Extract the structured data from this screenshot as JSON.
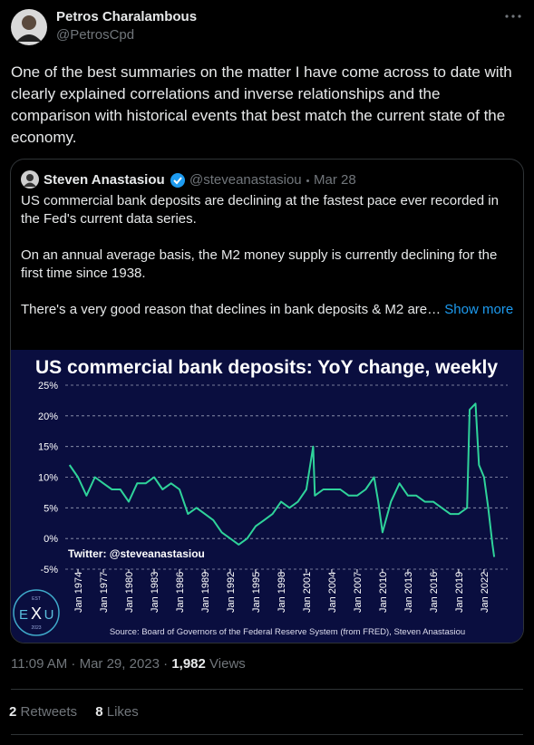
{
  "header": {
    "name": "Petros Charalambous",
    "handle": "@PetrosCpd"
  },
  "tweet": {
    "text": "One of the best summaries on the matter I have come across to date with clearly explained correlations and inverse relationships and the comparison with historical events that best match the current state of the economy."
  },
  "quote": {
    "name": "Steven Anastasiou",
    "handle": "@steveanastasiou",
    "date": "Mar 28",
    "paragraphs": [
      "US commercial bank deposits are declining at the fastest pace ever recorded in the Fed's current data series.",
      "On an annual average basis, the M2 money supply is currently declining for the first time since 1938.",
      "There's a very good reason that declines in bank deposits & M2 are…"
    ],
    "show_more": "Show more"
  },
  "chart_data": {
    "type": "line",
    "title": "US commercial bank deposits: YoY change, weekly",
    "annotation": "Twitter: @steveanastasiou",
    "source": "Source: Board of Governors of the Federal Reserve System (from FRED), Steven Anastasiou",
    "logo": {
      "top": "EST",
      "left": "E",
      "center": "X",
      "right": "U",
      "bottom": "2023"
    },
    "x": [
      1973,
      1974,
      1975,
      1976,
      1977,
      1978,
      1979,
      1980,
      1981,
      1982,
      1983,
      1984,
      1985,
      1986,
      1987,
      1988,
      1989,
      1990,
      1991,
      1992,
      1993,
      1994,
      1995,
      1996,
      1997,
      1998,
      1999,
      2000,
      2001,
      2001.8,
      2002,
      2003,
      2004,
      2005,
      2006,
      2007,
      2008,
      2009,
      2009.5,
      2010,
      2011,
      2012,
      2013,
      2014,
      2015,
      2016,
      2017,
      2018,
      2019,
      2020,
      2020.3,
      2021,
      2021.4,
      2022,
      2022.5,
      2023,
      2023.2
    ],
    "series": [
      {
        "name": "Deposits YoY",
        "color": "#2fd39a",
        "values": [
          12,
          10,
          7,
          10,
          9,
          8,
          8,
          6,
          9,
          9,
          10,
          8,
          9,
          8,
          4,
          5,
          4,
          3,
          1,
          0,
          -1,
          0,
          2,
          3,
          4,
          6,
          5,
          6,
          8,
          15,
          7,
          8,
          8,
          8,
          7,
          7,
          8,
          10,
          6,
          1,
          6,
          9,
          7,
          7,
          6,
          6,
          5,
          4,
          4,
          5,
          21,
          22,
          12,
          10,
          5,
          -1,
          -3
        ]
      }
    ],
    "xlim": [
      1973,
      2024.8
    ],
    "ylim": [
      -5,
      25
    ],
    "xticks": [
      {
        "value": 1974,
        "label": "Jan 1974"
      },
      {
        "value": 1977,
        "label": "Jan 1977"
      },
      {
        "value": 1980,
        "label": "Jan 1980"
      },
      {
        "value": 1983,
        "label": "Jan 1983"
      },
      {
        "value": 1986,
        "label": "Jan 1986"
      },
      {
        "value": 1989,
        "label": "Jan 1989"
      },
      {
        "value": 1992,
        "label": "Jan 1992"
      },
      {
        "value": 1995,
        "label": "Jan 1995"
      },
      {
        "value": 1998,
        "label": "Jan 1998"
      },
      {
        "value": 2001,
        "label": "Jan 2001"
      },
      {
        "value": 2004,
        "label": "Jan 2004"
      },
      {
        "value": 2007,
        "label": "Jan 2007"
      },
      {
        "value": 2010,
        "label": "Jan 2010"
      },
      {
        "value": 2013,
        "label": "Jan 2013"
      },
      {
        "value": 2016,
        "label": "Jan 2016"
      },
      {
        "value": 2019,
        "label": "Jan 2019"
      },
      {
        "value": 2022,
        "label": "Jan 2022"
      }
    ],
    "yticks": [
      {
        "value": -5,
        "label": "-5%"
      },
      {
        "value": 0,
        "label": "0%"
      },
      {
        "value": 5,
        "label": "5%"
      },
      {
        "value": 10,
        "label": "10%"
      },
      {
        "value": 15,
        "label": "15%"
      },
      {
        "value": 20,
        "label": "20%"
      },
      {
        "value": 25,
        "label": "25%"
      }
    ],
    "grid": true
  },
  "meta": {
    "time": "11:09 AM · Mar 29, 2023 ·",
    "views_count": "1,982",
    "views_label": "Views"
  },
  "stats": {
    "retweets": "2",
    "retweets_label": "Retweets",
    "likes": "8",
    "likes_label": "Likes"
  }
}
